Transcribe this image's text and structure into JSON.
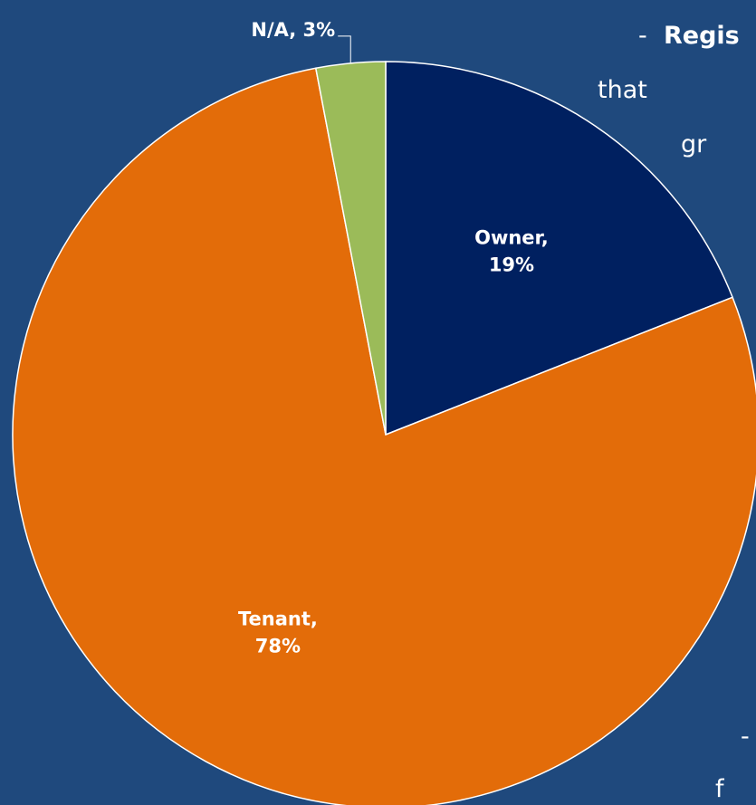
{
  "chart_data": {
    "type": "pie",
    "categories": [
      "Owner",
      "Tenant",
      "N/A"
    ],
    "values": [
      19,
      78,
      3
    ],
    "value_labels": [
      "Owner, 19%",
      "Tenant, 78%",
      "N/A, 3%"
    ],
    "colors": [
      "#002060",
      "#e36c09",
      "#9bbb59"
    ]
  },
  "background_text": [
    "-",
    "Regis",
    "that",
    "gr",
    "-",
    "f"
  ]
}
